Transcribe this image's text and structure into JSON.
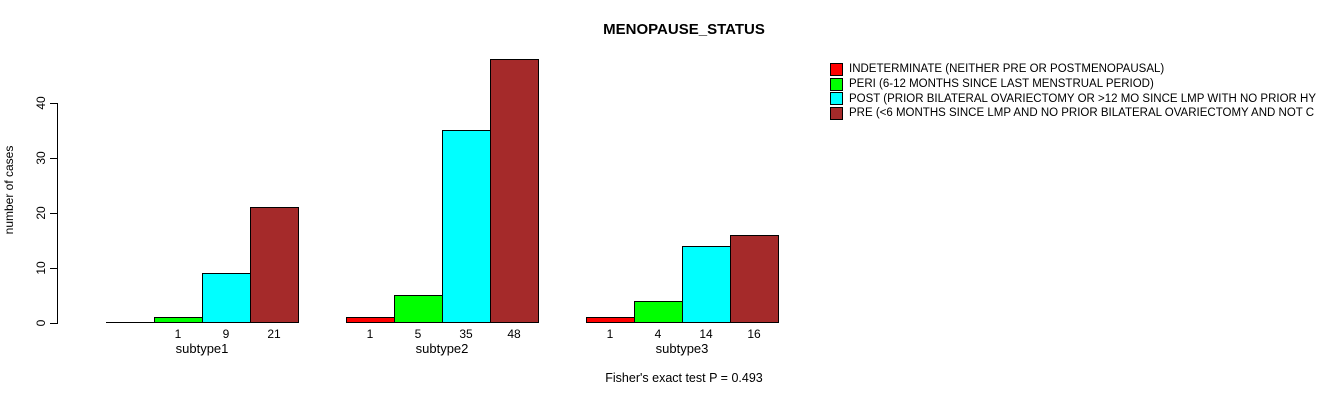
{
  "chart_data": {
    "type": "bar",
    "title": "MENOPAUSE_STATUS",
    "ylabel": "number of cases",
    "xlabel": "",
    "categories": [
      "subtype1",
      "subtype2",
      "subtype3"
    ],
    "series": [
      {
        "name": "INDETERMINATE (NEITHER PRE OR POSTMENOPAUSAL)",
        "color": "#ff0000",
        "values": [
          0,
          1,
          1
        ]
      },
      {
        "name": "PERI (6-12 MONTHS SINCE LAST MENSTRUAL PERIOD)",
        "color": "#00ff00",
        "values": [
          1,
          5,
          4
        ]
      },
      {
        "name": "POST (PRIOR BILATERAL OVARIECTOMY OR >12 MO SINCE LMP WITH NO PRIOR HY",
        "color": "#00ffff",
        "values": [
          9,
          35,
          14
        ]
      },
      {
        "name": "PRE (<6 MONTHS SINCE LMP AND NO PRIOR BILATERAL OVARIECTOMY AND NOT C",
        "color": "#a52a2a",
        "values": [
          21,
          48,
          16
        ]
      }
    ],
    "yticks": [
      0,
      10,
      20,
      30,
      40
    ],
    "ylim": [
      0,
      48.7
    ],
    "grid": false,
    "legend_position": "top-right",
    "bar_value_labels_shown": true,
    "annotation": "Fisher's exact test P = 0.493"
  }
}
